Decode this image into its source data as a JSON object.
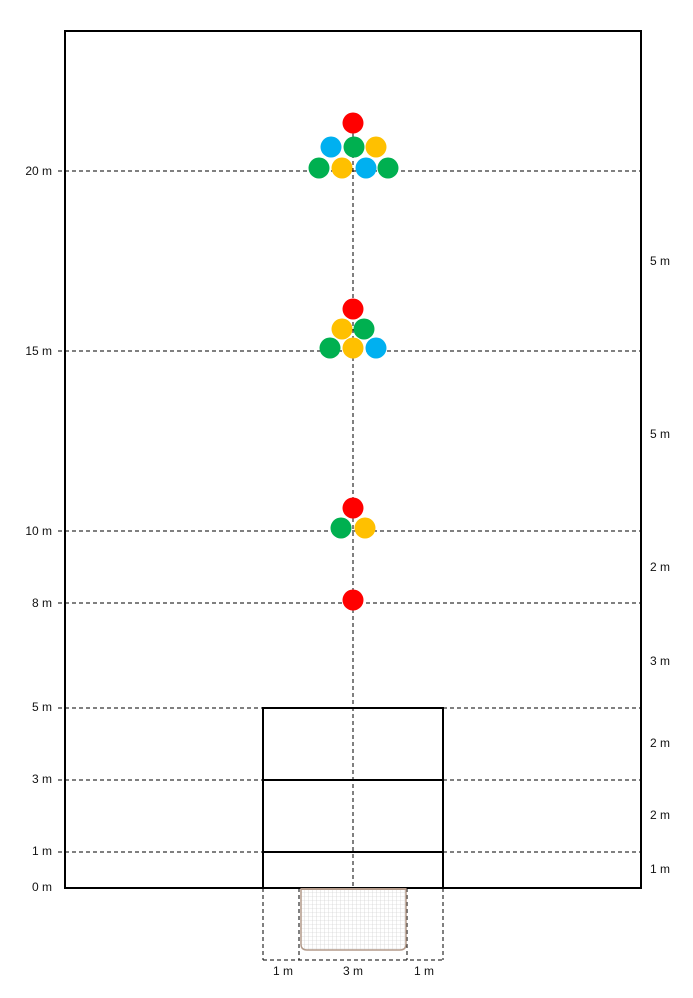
{
  "diagram": {
    "distance_labels_left": [
      "0 m",
      "1 m",
      "3 m",
      "5 m",
      "8 m",
      "10 m",
      "15 m",
      "20 m"
    ],
    "distance_labels_right": [
      "1 m",
      "2 m",
      "2 m",
      "3 m",
      "2 m",
      "5 m",
      "5 m"
    ],
    "bottom_labels": [
      "1 m",
      "3 m",
      "1 m"
    ],
    "colors": {
      "red": "#ff0000",
      "green": "#00b050",
      "yellow": "#ffc000",
      "blue": "#00b0f0"
    },
    "ball_groups": [
      {
        "distance_m": 8,
        "balls": [
          "red"
        ]
      },
      {
        "distance_m": 10,
        "balls": [
          "red",
          "green",
          "yellow"
        ]
      },
      {
        "distance_m": 15,
        "balls": [
          "red",
          "yellow",
          "green",
          "green",
          "yellow",
          "blue"
        ]
      },
      {
        "distance_m": 20,
        "balls": [
          "red",
          "blue",
          "green",
          "yellow",
          "green",
          "yellow",
          "blue",
          "green"
        ]
      }
    ]
  }
}
